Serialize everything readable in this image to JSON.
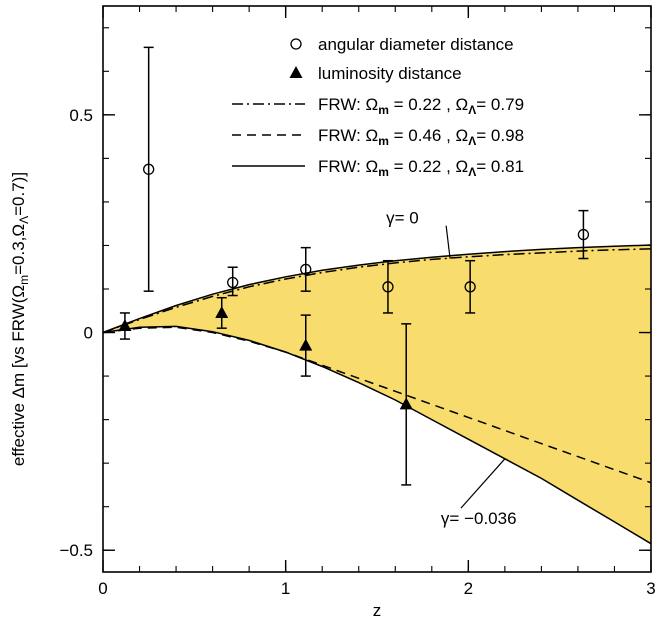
{
  "chart_data": {
    "type": "line",
    "xlabel": "z",
    "ylabel": "effective Δm   [vs FRW(Ω",
    "ylabel_parts": {
      "main": "effective Δm   [vs FRW(Ω",
      "sub1": "m",
      "mid": "=0.3,Ω",
      "sub2": "Λ",
      "end": "=0.7)]"
    },
    "xlim": [
      0,
      3
    ],
    "ylim": [
      -0.55,
      0.75
    ],
    "x_ticks": [
      0,
      1,
      2,
      3
    ],
    "x_tick_labels": [
      "0",
      "1",
      "2",
      "3"
    ],
    "y_ticks": [
      -0.5,
      0,
      0.5
    ],
    "y_tick_labels": [
      "−0.5",
      "0",
      "0.5"
    ],
    "legend": {
      "entries": [
        {
          "marker": "circle",
          "text": "angular diameter distance"
        },
        {
          "marker": "triangle",
          "text": "luminosity distance"
        },
        {
          "line": "dashdot",
          "prefix": "FRW: Ω",
          "sub1": "m",
          "v1": " = 0.22 , Ω",
          "sub2": "Λ",
          "v2": "= 0.79"
        },
        {
          "line": "dashed",
          "prefix": "FRW: Ω",
          "sub1": "m",
          "v1": " = 0.46 , Ω",
          "sub2": "Λ",
          "v2": "= 0.98"
        },
        {
          "line": "solid",
          "prefix": "FRW: Ω",
          "sub1": "m",
          "v1": " = 0.22 , Ω",
          "sub2": "Λ",
          "v2": "= 0.81"
        }
      ]
    },
    "annotations": [
      {
        "text": "γ=  0",
        "at": [
          1.55,
          0.25
        ],
        "arrow_to": [
          1.9,
          0.17
        ]
      },
      {
        "text": "γ=  −0.036",
        "at": [
          1.85,
          -0.44
        ],
        "arrow_to": [
          2.2,
          -0.29
        ]
      }
    ],
    "series": [
      {
        "name": "angular diameter distance",
        "kind": "points",
        "marker": "circle",
        "points": [
          {
            "x": 0.25,
            "y": 0.375,
            "ylo": 0.095,
            "yhi": 0.655
          },
          {
            "x": 0.71,
            "y": 0.115,
            "ylo": 0.085,
            "yhi": 0.15
          },
          {
            "x": 1.11,
            "y": 0.145,
            "ylo": 0.095,
            "yhi": 0.195
          },
          {
            "x": 1.56,
            "y": 0.105,
            "ylo": 0.045,
            "yhi": 0.165
          },
          {
            "x": 2.01,
            "y": 0.105,
            "ylo": 0.045,
            "yhi": 0.165
          },
          {
            "x": 2.63,
            "y": 0.225,
            "ylo": 0.17,
            "yhi": 0.28
          }
        ]
      },
      {
        "name": "luminosity distance",
        "kind": "points",
        "marker": "triangle",
        "points": [
          {
            "x": 0.12,
            "y": 0.015,
            "ylo": -0.015,
            "yhi": 0.045
          },
          {
            "x": 0.65,
            "y": 0.045,
            "ylo": 0.01,
            "yhi": 0.08
          },
          {
            "x": 1.11,
            "y": -0.03,
            "ylo": -0.1,
            "yhi": 0.04
          },
          {
            "x": 1.66,
            "y": -0.165,
            "ylo": -0.35,
            "yhi": 0.02
          }
        ]
      },
      {
        "name": "FRW: Ωm = 0.22 , ΩΛ= 0.79",
        "kind": "line",
        "style": "dashdot",
        "x": [
          0,
          0.2,
          0.4,
          0.6,
          0.8,
          1.0,
          1.2,
          1.4,
          1.6,
          1.8,
          2.0,
          2.2,
          2.4,
          2.6,
          2.8,
          3.0
        ],
        "y": [
          0,
          0.03,
          0.058,
          0.083,
          0.105,
          0.123,
          0.138,
          0.15,
          0.16,
          0.168,
          0.174,
          0.179,
          0.183,
          0.187,
          0.19,
          0.192
        ]
      },
      {
        "name": "FRW: Ωm = 0.46 , ΩΛ= 0.98",
        "kind": "line",
        "style": "dashed",
        "x": [
          0,
          0.2,
          0.4,
          0.6,
          0.8,
          1.0,
          1.2,
          1.4,
          1.6,
          1.8,
          2.0,
          2.2,
          2.4,
          2.6,
          2.8,
          3.0
        ],
        "y": [
          0,
          0.01,
          0.012,
          0.0,
          -0.02,
          -0.045,
          -0.075,
          -0.105,
          -0.135,
          -0.165,
          -0.195,
          -0.225,
          -0.255,
          -0.285,
          -0.315,
          -0.345
        ]
      },
      {
        "name": "FRW: Ωm = 0.22 , ΩΛ= 0.81 (upper, γ=0)",
        "kind": "line",
        "style": "solid",
        "x": [
          0,
          0.2,
          0.4,
          0.6,
          0.8,
          1.0,
          1.2,
          1.4,
          1.6,
          1.8,
          2.0,
          2.2,
          2.4,
          2.6,
          2.8,
          3.0
        ],
        "y": [
          0,
          0.032,
          0.062,
          0.088,
          0.11,
          0.128,
          0.143,
          0.155,
          0.165,
          0.173,
          0.18,
          0.186,
          0.191,
          0.195,
          0.198,
          0.201
        ]
      },
      {
        "name": "FRW: Ωm = 0.22 , ΩΛ= 0.81 (lower, γ=−0.036)",
        "kind": "line",
        "style": "solid",
        "x": [
          0,
          0.2,
          0.4,
          0.6,
          0.8,
          1.0,
          1.2,
          1.4,
          1.6,
          1.8,
          2.0,
          2.2,
          2.4,
          2.6,
          2.8,
          3.0
        ],
        "y": [
          0,
          0.012,
          0.014,
          0.002,
          -0.018,
          -0.045,
          -0.078,
          -0.115,
          -0.155,
          -0.2,
          -0.245,
          -0.29,
          -0.335,
          -0.385,
          -0.435,
          -0.485
        ]
      }
    ],
    "band": {
      "between": [
        "upper",
        "lower"
      ],
      "color": "#F9DC6E"
    },
    "colors": {
      "band": "#F9DC6E",
      "ink": "#000000"
    }
  }
}
